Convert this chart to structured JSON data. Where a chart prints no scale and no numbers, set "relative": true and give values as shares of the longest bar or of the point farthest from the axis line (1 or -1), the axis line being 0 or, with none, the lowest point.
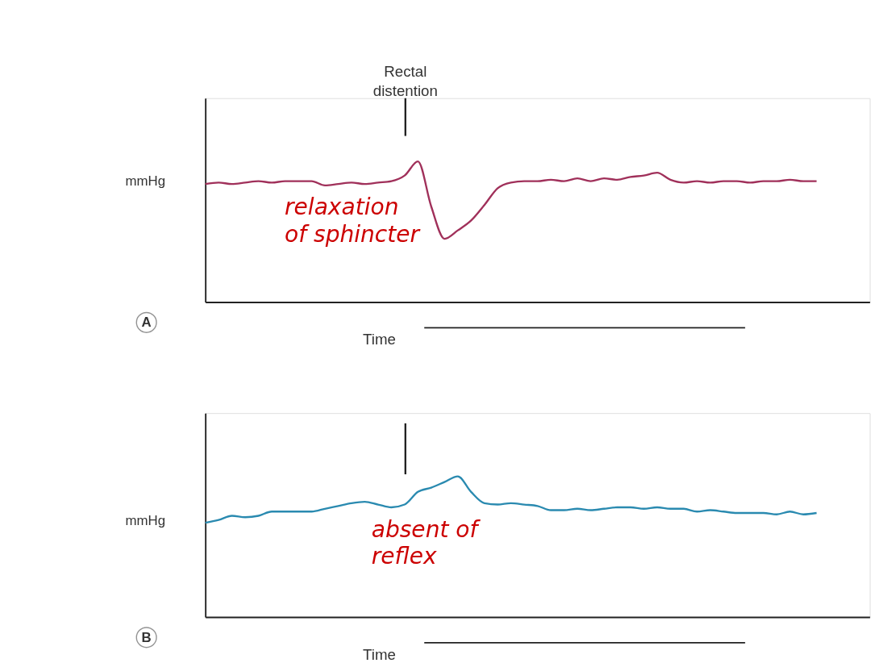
{
  "chart_data": [
    {
      "type": "line",
      "title": "A",
      "xlabel": "Time",
      "ylabel": "mmHg",
      "relative": true,
      "categories": [
        null,
        null,
        null,
        null,
        null,
        null,
        null,
        null,
        null,
        null,
        null,
        null,
        null,
        null,
        null,
        null,
        null,
        null,
        null,
        null,
        null,
        null,
        null,
        null,
        null,
        null,
        null,
        null,
        null,
        null,
        null,
        null,
        null,
        null,
        null,
        null,
        null,
        null,
        null,
        null,
        null,
        null,
        null,
        null,
        null,
        null,
        null,
        null,
        null,
        null,
        null
      ],
      "series": [
        {
          "color": "#a0305a",
          "values": [
            0.84,
            0.85,
            0.84,
            0.85,
            0.86,
            0.85,
            0.86,
            0.86,
            0.86,
            0.83,
            0.84,
            0.85,
            0.84,
            0.85,
            0.86,
            0.9,
            1.0,
            0.68,
            0.45,
            0.51,
            0.58,
            0.69,
            0.81,
            0.85,
            0.86,
            0.86,
            0.87,
            0.86,
            0.88,
            0.86,
            0.88,
            0.87,
            0.89,
            0.9,
            0.92,
            0.87,
            0.85,
            0.86,
            0.85,
            0.86,
            0.86,
            0.85,
            0.86,
            0.86,
            0.87,
            0.86,
            0.86,
            null,
            null,
            null,
            null
          ]
        }
      ],
      "annotations": [
        "Rectal distention",
        "relaxation of sphincter"
      ]
    },
    {
      "type": "line",
      "title": "B",
      "xlabel": "Time",
      "ylabel": "mmHg",
      "relative": true,
      "categories": [
        null,
        null,
        null,
        null,
        null,
        null,
        null,
        null,
        null,
        null,
        null,
        null,
        null,
        null,
        null,
        null,
        null,
        null,
        null,
        null,
        null,
        null,
        null,
        null,
        null,
        null,
        null,
        null,
        null,
        null,
        null,
        null,
        null,
        null,
        null,
        null,
        null,
        null,
        null,
        null,
        null,
        null,
        null,
        null,
        null,
        null,
        null,
        null,
        null,
        null,
        null
      ],
      "series": [
        {
          "color": "#2a8ab0",
          "values": [
            0.67,
            0.69,
            0.72,
            0.71,
            0.72,
            0.75,
            0.75,
            0.75,
            0.75,
            0.77,
            0.79,
            0.81,
            0.82,
            0.8,
            0.78,
            0.8,
            0.89,
            0.92,
            0.96,
            1.0,
            0.89,
            0.81,
            0.8,
            0.81,
            0.8,
            0.79,
            0.76,
            0.76,
            0.77,
            0.76,
            0.77,
            0.78,
            0.78,
            0.77,
            0.78,
            0.77,
            0.77,
            0.75,
            0.76,
            0.75,
            0.74,
            0.74,
            0.74,
            0.73,
            0.75,
            0.73,
            0.74,
            null,
            null,
            null,
            null
          ]
        }
      ],
      "annotations": [
        "absent of reflex"
      ]
    }
  ]
}
